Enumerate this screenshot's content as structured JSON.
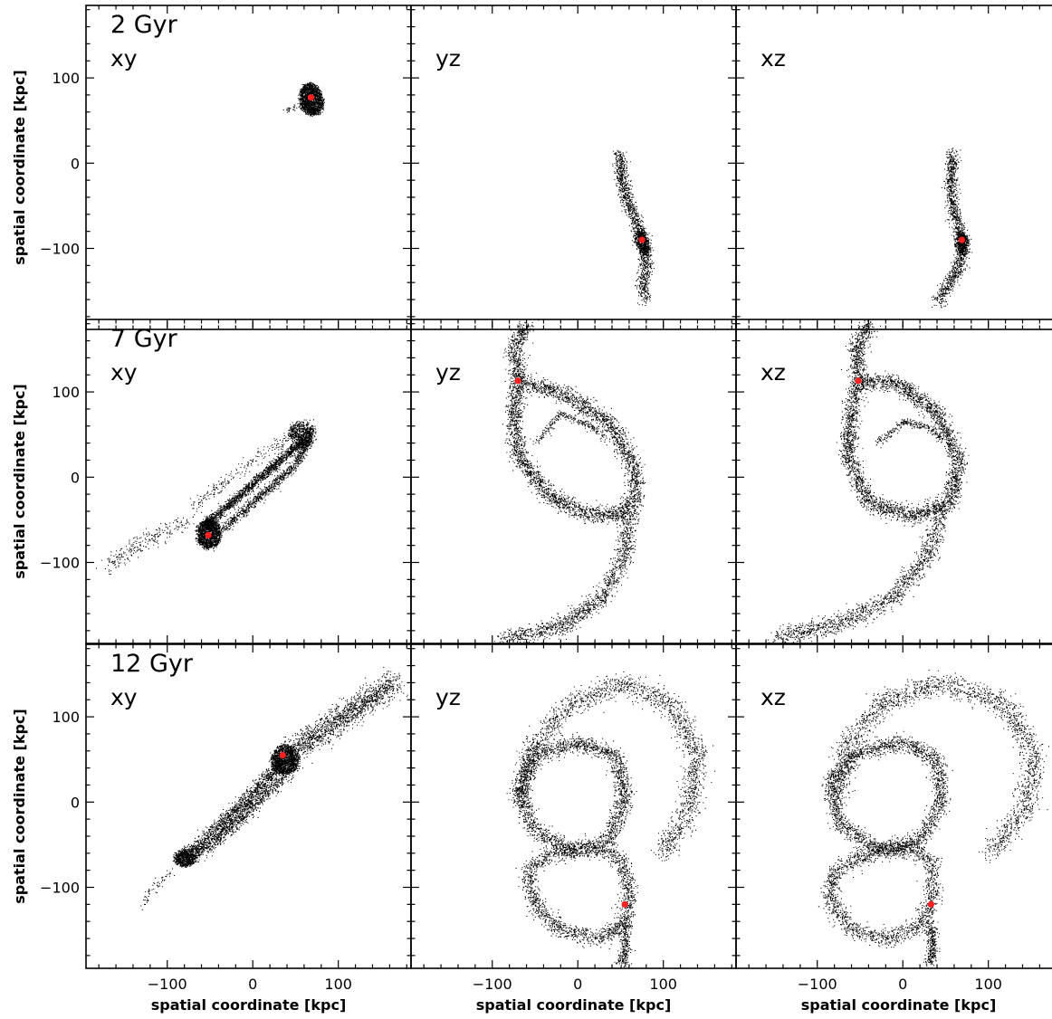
{
  "chart_data": {
    "type": "scatter",
    "layout": "3x3 grid",
    "point_color": "#000000",
    "highlight_color": "#ff2020",
    "xlabel": "spatial coordinate [kpc]",
    "ylabel": "spatial coordinate [kpc]",
    "xlim": [
      -195,
      185
    ],
    "ylim": [
      -195,
      185
    ],
    "xticks": [
      -100,
      0,
      100
    ],
    "yticks": [
      -100,
      0,
      100
    ],
    "xtick_labels": [
      "−100",
      "0",
      "100"
    ],
    "ytick_labels": [
      "−100",
      "0",
      "100"
    ],
    "grid": false,
    "legend": "none",
    "panels": [
      {
        "row": 0,
        "col": 0,
        "time_label": "2 Gyr",
        "plane_label": "xy",
        "center": [
          68,
          77
        ],
        "structures": [
          {
            "kind": "blob",
            "at": [
              68,
              75
            ],
            "radius": [
              13,
              19
            ],
            "angle": 0.2,
            "weight": 1700
          },
          {
            "kind": "arc",
            "points": [
              [
                55,
                66
              ],
              [
                38,
                63
              ]
            ],
            "width": 3,
            "weight": 25
          }
        ]
      },
      {
        "row": 0,
        "col": 1,
        "time_label": "",
        "plane_label": "yz",
        "center": [
          75,
          -90
        ],
        "structures": [
          {
            "kind": "arc",
            "points": [
              [
                48,
                12
              ],
              [
                52,
                -25
              ],
              [
                62,
                -55
              ],
              [
                72,
                -80
              ],
              [
                77,
                -95
              ],
              [
                80,
                -115
              ],
              [
                75,
                -140
              ],
              [
                78,
                -160
              ]
            ],
            "width": 7,
            "weight": 1300
          },
          {
            "kind": "blob",
            "at": [
              75,
              -93
            ],
            "radius": [
              7,
              15
            ],
            "angle": 0.3,
            "weight": 500
          }
        ]
      },
      {
        "row": 0,
        "col": 2,
        "time_label": "",
        "plane_label": "xz",
        "center": [
          69,
          -90
        ],
        "structures": [
          {
            "kind": "arc",
            "points": [
              [
                58,
                12
              ],
              [
                56,
                -25
              ],
              [
                60,
                -55
              ],
              [
                66,
                -80
              ],
              [
                70,
                -95
              ],
              [
                66,
                -118
              ],
              [
                55,
                -140
              ],
              [
                40,
                -162
              ]
            ],
            "width": 7,
            "weight": 1300
          },
          {
            "kind": "blob",
            "at": [
              69,
              -93
            ],
            "radius": [
              7,
              14
            ],
            "angle": 0.1,
            "weight": 500
          }
        ]
      },
      {
        "row": 1,
        "col": 0,
        "time_label": "7 Gyr",
        "plane_label": "xy",
        "center": [
          -52,
          -68
        ],
        "structures": [
          {
            "kind": "blob",
            "at": [
              -52,
              -66
            ],
            "radius": [
              14,
              17
            ],
            "angle": 0.0,
            "weight": 1500
          },
          {
            "kind": "arc",
            "points": [
              [
                -55,
                -55
              ],
              [
                -20,
                -25
              ],
              [
                20,
                10
              ],
              [
                55,
                40
              ],
              [
                70,
                58
              ]
            ],
            "width": 5,
            "weight": 1700
          },
          {
            "kind": "arc",
            "points": [
              [
                -35,
                -60
              ],
              [
                5,
                -25
              ],
              [
                45,
                10
              ],
              [
                68,
                45
              ]
            ],
            "width": 5,
            "weight": 900
          },
          {
            "kind": "blob",
            "at": [
              55,
              50
            ],
            "radius": [
              12,
              15
            ],
            "angle": 0.5,
            "weight": 500
          },
          {
            "kind": "arc",
            "points": [
              [
                -75,
                -50
              ],
              [
                -130,
                -75
              ],
              [
                -170,
                -105
              ]
            ],
            "width": 10,
            "weight": 250
          },
          {
            "kind": "arc",
            "points": [
              [
                -70,
                -35
              ],
              [
                -20,
                5
              ],
              [
                30,
                40
              ],
              [
                65,
                65
              ]
            ],
            "width": 7,
            "weight": 250
          }
        ]
      },
      {
        "row": 1,
        "col": 1,
        "time_label": "",
        "plane_label": "yz",
        "center": [
          -70,
          113
        ],
        "structures": [
          {
            "kind": "loop",
            "points": [
              [
                -70,
                113
              ],
              [
                -20,
                100
              ],
              [
                35,
                65
              ],
              [
                65,
                15
              ],
              [
                68,
                -25
              ],
              [
                45,
                -45
              ],
              [
                5,
                -42
              ],
              [
                -35,
                -20
              ],
              [
                -70,
                25
              ],
              [
                -75,
                80
              ]
            ],
            "width": 9,
            "weight": 3200
          },
          {
            "kind": "arc",
            "points": [
              [
                -60,
                180
              ],
              [
                -75,
                150
              ],
              [
                -70,
                113
              ]
            ],
            "width": 9,
            "weight": 500
          },
          {
            "kind": "arc",
            "points": [
              [
                60,
                -35
              ],
              [
                55,
                -90
              ],
              [
                30,
                -140
              ],
              [
                -20,
                -175
              ],
              [
                -90,
                -190
              ]
            ],
            "width": 10,
            "weight": 1300
          },
          {
            "kind": "arc",
            "points": [
              [
                -50,
                40
              ],
              [
                -20,
                75
              ],
              [
                15,
                60
              ],
              [
                30,
                45
              ]
            ],
            "width": 4,
            "weight": 250
          }
        ]
      },
      {
        "row": 1,
        "col": 2,
        "time_label": "",
        "plane_label": "xz",
        "center": [
          -52,
          113
        ],
        "structures": [
          {
            "kind": "loop",
            "points": [
              [
                -52,
                113
              ],
              [
                -5,
                110
              ],
              [
                40,
                75
              ],
              [
                65,
                20
              ],
              [
                55,
                -30
              ],
              [
                10,
                -45
              ],
              [
                -40,
                -30
              ],
              [
                -65,
                25
              ],
              [
                -60,
                80
              ]
            ],
            "width": 9,
            "weight": 3200
          },
          {
            "kind": "arc",
            "points": [
              [
                -40,
                180
              ],
              [
                -55,
                150
              ],
              [
                -52,
                113
              ]
            ],
            "width": 9,
            "weight": 500
          },
          {
            "kind": "arc",
            "points": [
              [
                45,
                -35
              ],
              [
                30,
                -90
              ],
              [
                -10,
                -140
              ],
              [
                -70,
                -170
              ],
              [
                -150,
                -188
              ]
            ],
            "width": 10,
            "weight": 1300
          },
          {
            "kind": "arc",
            "points": [
              [
                -30,
                40
              ],
              [
                0,
                65
              ],
              [
                30,
                60
              ],
              [
                45,
                45
              ]
            ],
            "width": 4,
            "weight": 250
          }
        ]
      },
      {
        "row": 2,
        "col": 0,
        "time_label": "12 Gyr",
        "plane_label": "xy",
        "center": [
          35,
          55
        ],
        "structures": [
          {
            "kind": "blob",
            "at": [
              37,
              50
            ],
            "radius": [
              15,
              17
            ],
            "angle": 0.0,
            "weight": 1300
          },
          {
            "kind": "arc",
            "points": [
              [
                -85,
                -70
              ],
              [
                -40,
                -30
              ],
              [
                0,
                10
              ],
              [
                35,
                50
              ]
            ],
            "width": 8,
            "weight": 1500
          },
          {
            "kind": "arc",
            "points": [
              [
                -70,
                -65
              ],
              [
                -20,
                -25
              ],
              [
                25,
                20
              ],
              [
                50,
                45
              ]
            ],
            "width": 7,
            "weight": 900
          },
          {
            "kind": "blob",
            "at": [
              -80,
              -65
            ],
            "radius": [
              12,
              10
            ],
            "angle": 0.0,
            "weight": 600
          },
          {
            "kind": "arc",
            "points": [
              [
                40,
                55
              ],
              [
                90,
                90
              ],
              [
                135,
                120
              ],
              [
                165,
                140
              ]
            ],
            "width": 13,
            "weight": 1500
          },
          {
            "kind": "arc",
            "points": [
              [
                -95,
                -80
              ],
              [
                -120,
                -105
              ],
              [
                -130,
                -125
              ]
            ],
            "width": 5,
            "weight": 60
          }
        ]
      },
      {
        "row": 2,
        "col": 1,
        "time_label": "",
        "plane_label": "yz",
        "center": [
          55,
          -120
        ],
        "structures": [
          {
            "kind": "loop",
            "points": [
              [
                0,
                70
              ],
              [
                45,
                55
              ],
              [
                55,
                5
              ],
              [
                35,
                -45
              ],
              [
                -10,
                -55
              ],
              [
                -50,
                -35
              ],
              [
                -70,
                15
              ],
              [
                -50,
                55
              ]
            ],
            "width": 9,
            "weight": 2200
          },
          {
            "kind": "arc",
            "points": [
              [
                -60,
                -80
              ],
              [
                -30,
                -60
              ],
              [
                20,
                -55
              ],
              [
                50,
                -65
              ],
              [
                60,
                -100
              ],
              [
                55,
                -140
              ],
              [
                25,
                -160
              ],
              [
                -20,
                -150
              ],
              [
                -50,
                -120
              ],
              [
                -60,
                -80
              ]
            ],
            "width": 9,
            "weight": 1700
          },
          {
            "kind": "arc",
            "points": [
              [
                -70,
                0
              ],
              [
                -55,
                60
              ],
              [
                -10,
                115
              ],
              [
                50,
                140
              ],
              [
                110,
                115
              ],
              [
                140,
                55
              ],
              [
                130,
                -5
              ],
              [
                100,
                -60
              ]
            ],
            "width": 12,
            "weight": 2000
          },
          {
            "kind": "arc",
            "points": [
              [
                55,
                -140
              ],
              [
                55,
                -175
              ],
              [
                50,
                -190
              ]
            ],
            "width": 6,
            "weight": 300
          }
        ]
      },
      {
        "row": 2,
        "col": 2,
        "time_label": "",
        "plane_label": "xz",
        "center": [
          33,
          -120
        ],
        "structures": [
          {
            "kind": "loop",
            "points": [
              [
                0,
                70
              ],
              [
                40,
                50
              ],
              [
                45,
                0
              ],
              [
                20,
                -45
              ],
              [
                -30,
                -55
              ],
              [
                -75,
                -25
              ],
              [
                -85,
                25
              ],
              [
                -50,
                60
              ]
            ],
            "width": 9,
            "weight": 2200
          },
          {
            "kind": "arc",
            "points": [
              [
                -80,
                -80
              ],
              [
                -40,
                -60
              ],
              [
                10,
                -55
              ],
              [
                35,
                -70
              ],
              [
                35,
                -110
              ],
              [
                20,
                -145
              ],
              [
                -20,
                -160
              ],
              [
                -60,
                -150
              ],
              [
                -85,
                -115
              ],
              [
                -80,
                -80
              ]
            ],
            "width": 9,
            "weight": 1700
          },
          {
            "kind": "arc",
            "points": [
              [
                -75,
                5
              ],
              [
                -65,
                70
              ],
              [
                -20,
                120
              ],
              [
                50,
                140
              ],
              [
                120,
                115
              ],
              [
                155,
                55
              ],
              [
                140,
                -10
              ],
              [
                100,
                -60
              ]
            ],
            "width": 12,
            "weight": 2000
          },
          {
            "kind": "arc",
            "points": [
              [
                33,
                -140
              ],
              [
                35,
                -175
              ],
              [
                30,
                -190
              ]
            ],
            "width": 6,
            "weight": 300
          }
        ]
      }
    ]
  }
}
